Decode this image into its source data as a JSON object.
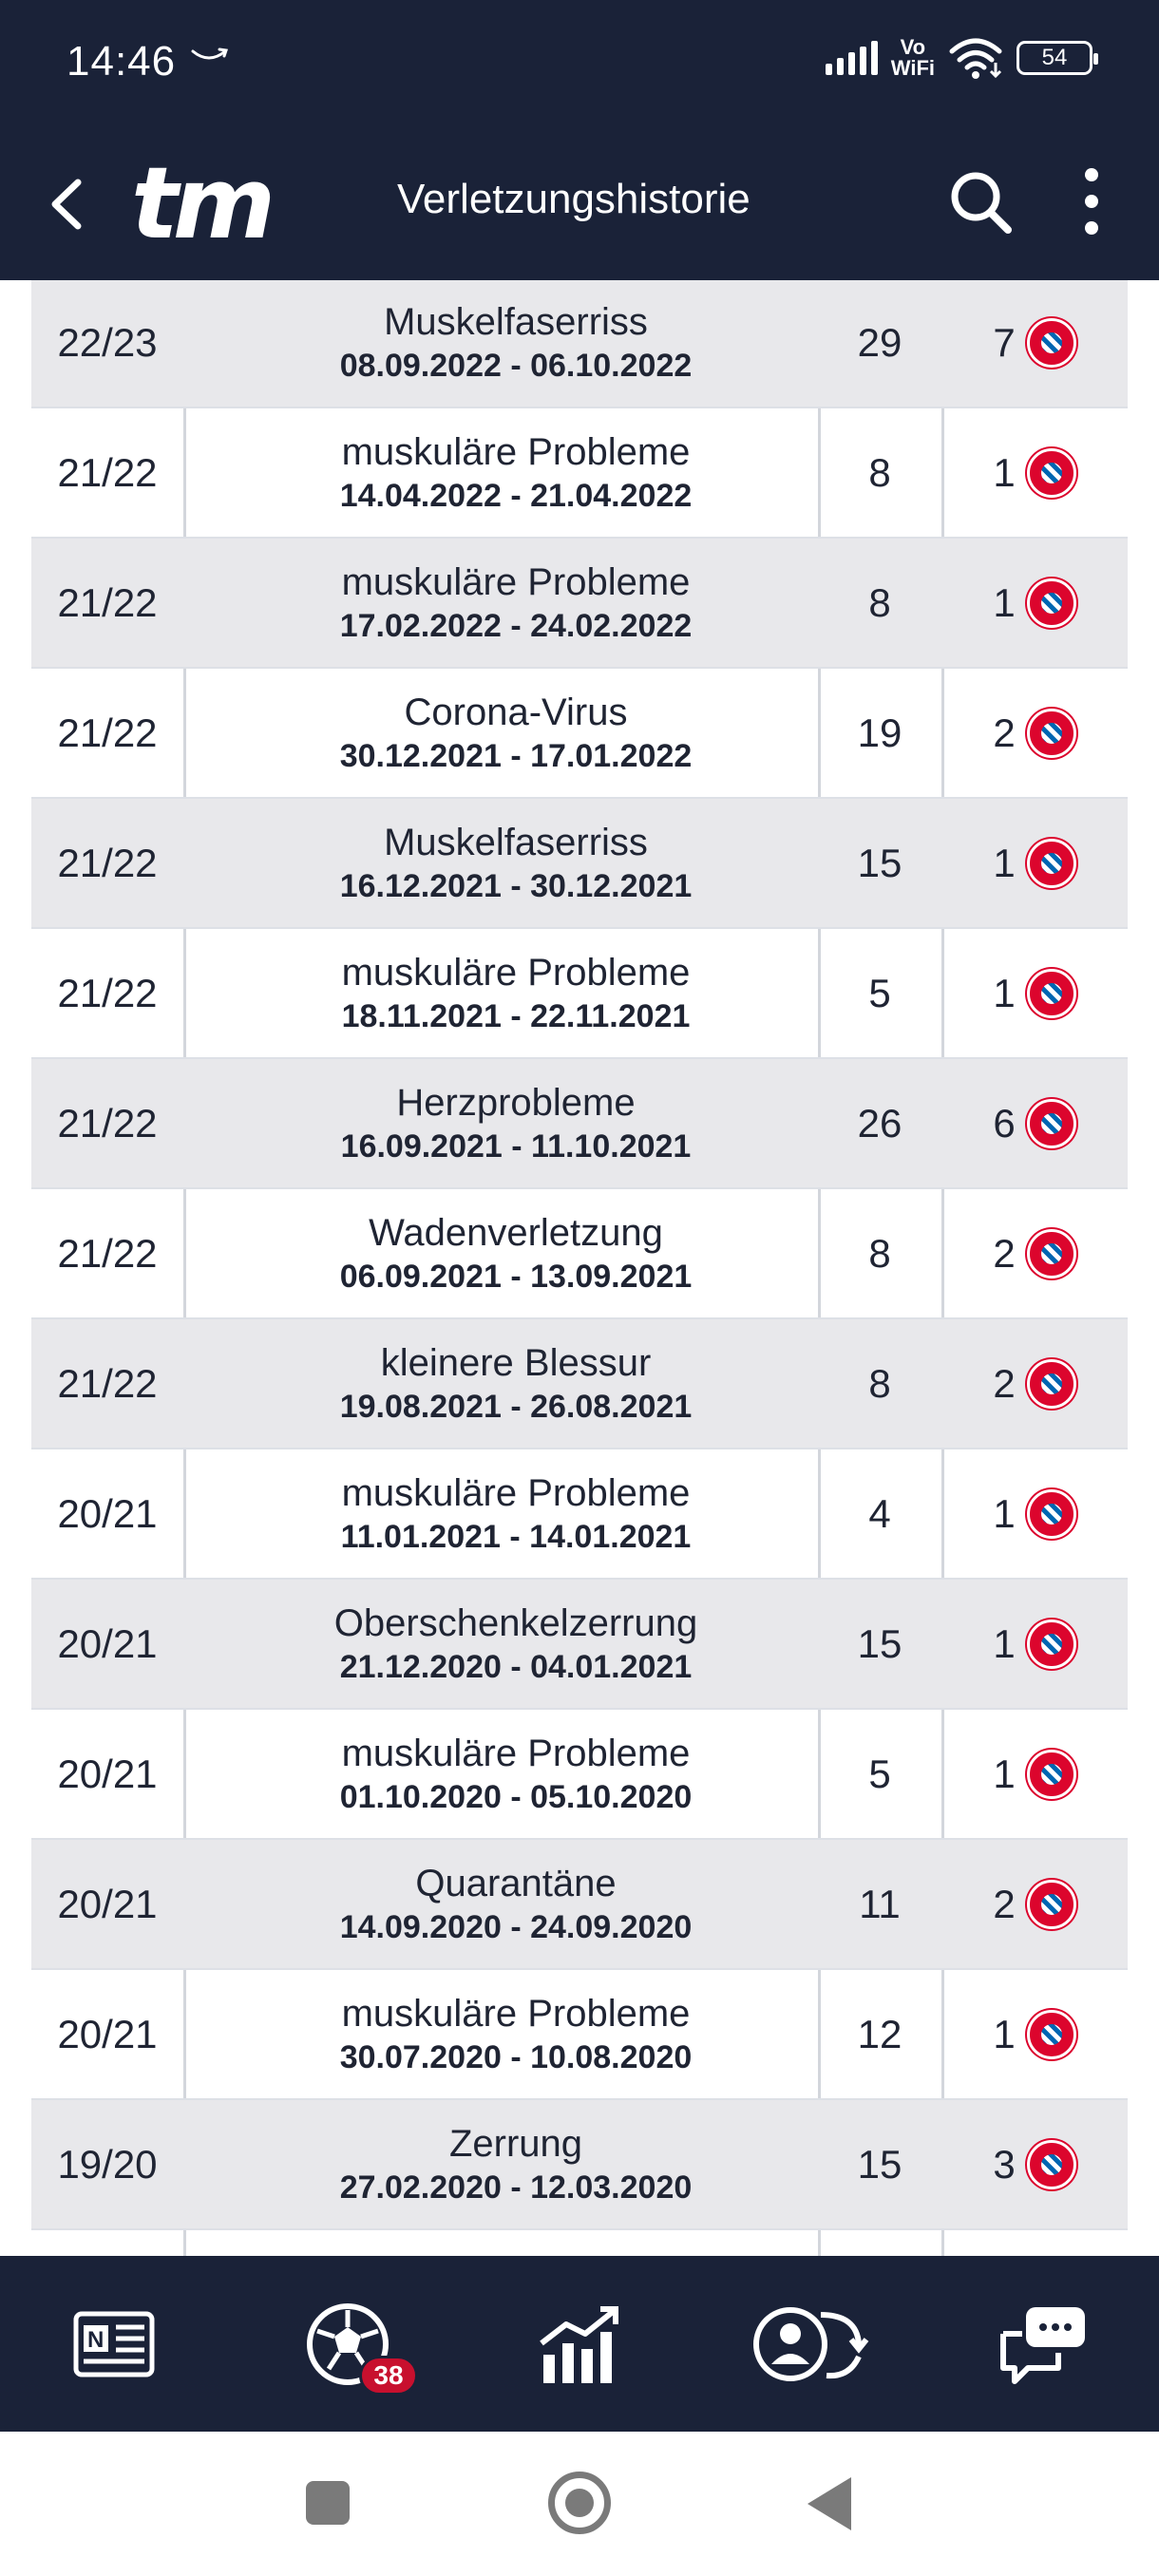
{
  "status_bar": {
    "time": "14:46",
    "network_label_top": "Vo",
    "network_label_bottom": "WiFi",
    "battery": "54",
    "icons": [
      "amazon-icon",
      "signal-icon",
      "wifi-icon",
      "battery-icon"
    ]
  },
  "header": {
    "logo": "tm",
    "title": "Verletzungshistorie",
    "icons": [
      "back-arrow-icon",
      "search-icon",
      "more-vertical-icon"
    ]
  },
  "injuries": [
    {
      "season": "22/23",
      "injury": "Muskelfaserriss",
      "dates": "08.09.2022 - 06.10.2022",
      "days": "29",
      "games": "7"
    },
    {
      "season": "21/22",
      "injury": "muskuläre Probleme",
      "dates": "14.04.2022 - 21.04.2022",
      "days": "8",
      "games": "1"
    },
    {
      "season": "21/22",
      "injury": "muskuläre Probleme",
      "dates": "17.02.2022 - 24.02.2022",
      "days": "8",
      "games": "1"
    },
    {
      "season": "21/22",
      "injury": "Corona-Virus",
      "dates": "30.12.2021 - 17.01.2022",
      "days": "19",
      "games": "2"
    },
    {
      "season": "21/22",
      "injury": "Muskelfaserriss",
      "dates": "16.12.2021 - 30.12.2021",
      "days": "15",
      "games": "1"
    },
    {
      "season": "21/22",
      "injury": "muskuläre Probleme",
      "dates": "18.11.2021 - 22.11.2021",
      "days": "5",
      "games": "1"
    },
    {
      "season": "21/22",
      "injury": "Herzprobleme",
      "dates": "16.09.2021 - 11.10.2021",
      "days": "26",
      "games": "6"
    },
    {
      "season": "21/22",
      "injury": "Wadenverletzung",
      "dates": "06.09.2021 - 13.09.2021",
      "days": "8",
      "games": "2"
    },
    {
      "season": "21/22",
      "injury": "kleinere Blessur",
      "dates": "19.08.2021 - 26.08.2021",
      "days": "8",
      "games": "2"
    },
    {
      "season": "20/21",
      "injury": "muskuläre Probleme",
      "dates": "11.01.2021 - 14.01.2021",
      "days": "4",
      "games": "1"
    },
    {
      "season": "20/21",
      "injury": "Oberschenkelzerrung",
      "dates": "21.12.2020 - 04.01.2021",
      "days": "15",
      "games": "1"
    },
    {
      "season": "20/21",
      "injury": "muskuläre Probleme",
      "dates": "01.10.2020 - 05.10.2020",
      "days": "5",
      "games": "1"
    },
    {
      "season": "20/21",
      "injury": "Quarantäne",
      "dates": "14.09.2020 - 24.09.2020",
      "days": "11",
      "games": "2"
    },
    {
      "season": "20/21",
      "injury": "muskuläre Probleme",
      "dates": "30.07.2020 - 10.08.2020",
      "days": "12",
      "games": "1"
    },
    {
      "season": "19/20",
      "injury": "Zerrung",
      "dates": "27.02.2020 - 12.03.2020",
      "days": "15",
      "games": "3"
    }
  ],
  "bottom_nav": {
    "items": [
      {
        "name": "news",
        "icon": "newspaper-icon"
      },
      {
        "name": "matches",
        "icon": "soccer-ball-icon",
        "badge": "38"
      },
      {
        "name": "market-values",
        "icon": "chart-trend-icon"
      },
      {
        "name": "transfers",
        "icon": "player-swap-icon"
      },
      {
        "name": "chat",
        "icon": "chat-bubbles-icon"
      }
    ]
  },
  "colors": {
    "header_bg": "#1a2238",
    "row_shade": "#e8e8eb",
    "club_red": "#dc052d",
    "club_blue": "#0066b2",
    "badge_red": "#c8102e"
  }
}
